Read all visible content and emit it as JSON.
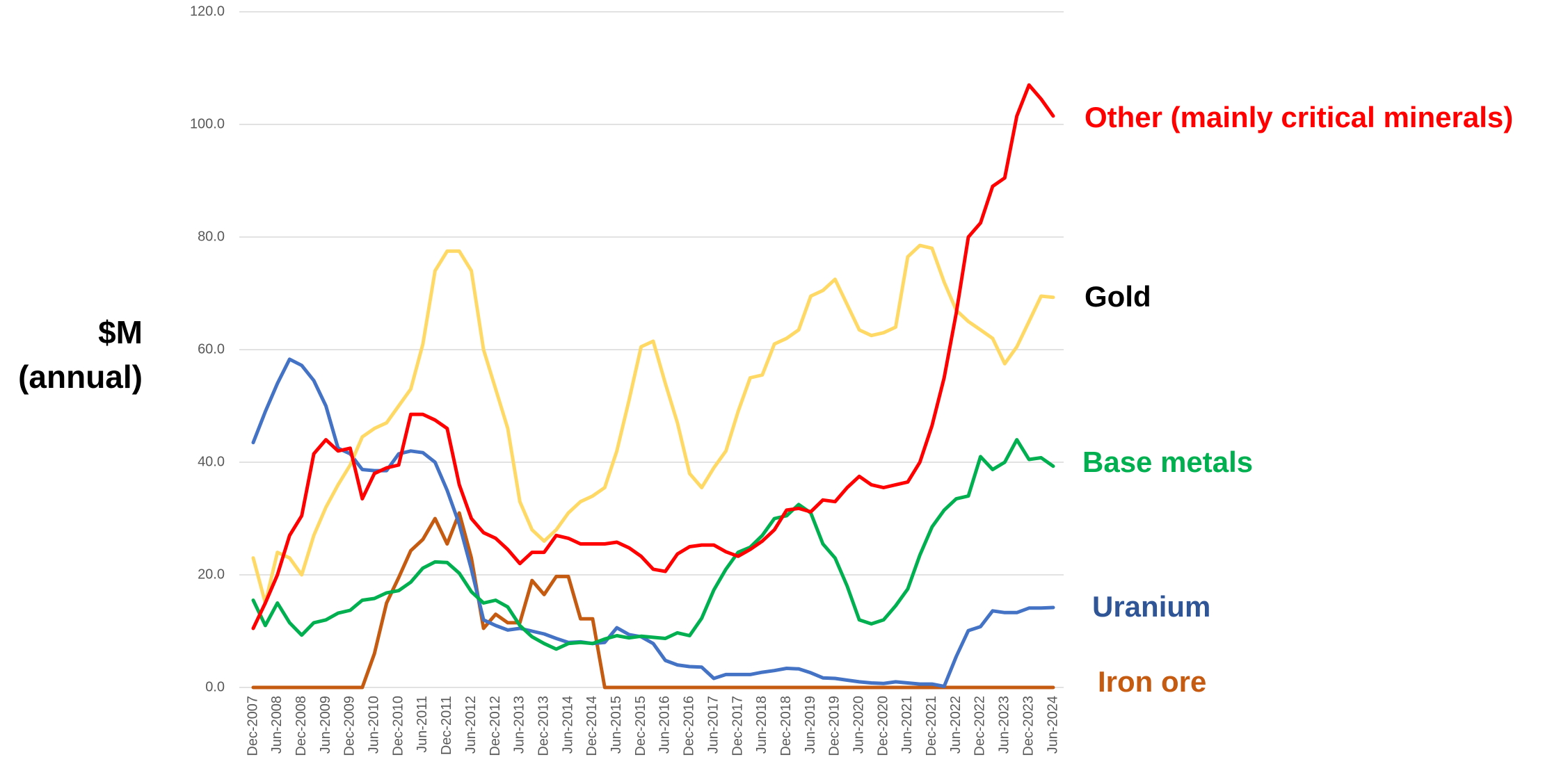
{
  "chart_data": {
    "type": "line",
    "y_label": [
      "$M",
      "(annual)"
    ],
    "categories": [
      "Dec-2007",
      null,
      "Jun-2008",
      null,
      "Dec-2008",
      null,
      "Jun-2009",
      null,
      "Dec-2009",
      null,
      "Jun-2010",
      null,
      "Dec-2010",
      null,
      "Jun-2011",
      null,
      "Dec-2011",
      null,
      "Jun-2012",
      null,
      "Dec-2012",
      null,
      "Jun-2013",
      null,
      "Dec-2013",
      null,
      "Jun-2014",
      null,
      "Dec-2014",
      null,
      "Jun-2015",
      null,
      "Dec-2015",
      null,
      "Jun-2016",
      null,
      "Dec-2016",
      null,
      "Jun-2017",
      null,
      "Dec-2017",
      null,
      "Jun-2018",
      null,
      "Dec-2018",
      null,
      "Jun-2019",
      null,
      "Dec-2019",
      null,
      "Jun-2020",
      null,
      "Dec-2020",
      null,
      "Jun-2021",
      null,
      "Dec-2021",
      null,
      "Jun-2022",
      null,
      "Dec-2022",
      null,
      "Jun-2023",
      null,
      "Dec-2023",
      null,
      "Jun-2024"
    ],
    "series": [
      {
        "name": "Other (mainly critical minerals)",
        "color": "#ff0000",
        "label_color": "#ff0000",
        "values": [
          10.5,
          15,
          20,
          27,
          30.5,
          41.5,
          44,
          42,
          42.5,
          33.5,
          38,
          39,
          39.5,
          48.5,
          48.5,
          47.5,
          46,
          36,
          30,
          27.5,
          26.5,
          24.5,
          22,
          24,
          24,
          27,
          26.5,
          25.5,
          25.5,
          25.5,
          25.8,
          24.8,
          23.3,
          21,
          20.6,
          23.7,
          25,
          25.3,
          25.3,
          24.1,
          23.3,
          24.5,
          26,
          28,
          31.5,
          31.8,
          31.2,
          33.3,
          33,
          35.5,
          37.5,
          36,
          35.5,
          36,
          36.5,
          40,
          46.5,
          55,
          66.5,
          80,
          82.5,
          89,
          90.5,
          101.5,
          107,
          104.5,
          101.5
        ]
      },
      {
        "name": "Gold",
        "color": "#ffd966",
        "label_color": "#000000",
        "values": [
          23,
          15,
          24,
          23,
          20,
          27,
          32,
          36,
          39.5,
          44.5,
          46,
          47,
          50,
          53,
          61,
          74,
          77.5,
          77.5,
          74,
          60,
          53,
          46,
          33,
          28,
          26,
          28,
          31,
          33,
          34,
          35.5,
          42,
          51,
          60.5,
          61.5,
          54,
          47,
          38,
          35.5,
          39,
          42,
          49,
          55,
          55.5,
          61,
          62,
          63.5,
          69.5,
          70.5,
          72.5,
          68,
          63.5,
          62.5,
          63,
          64,
          76.5,
          78.5,
          78,
          72,
          67,
          65,
          63.5,
          62,
          57.5,
          60.5,
          65,
          69.5,
          69.3
        ]
      },
      {
        "name": "Base metals",
        "color": "#00b050",
        "label_color": "#00b050",
        "values": [
          15.5,
          11,
          15,
          11.5,
          9.3,
          11.5,
          12,
          13.2,
          13.7,
          15.5,
          15.8,
          16.8,
          17.2,
          18.7,
          21.2,
          22.3,
          22.2,
          20.3,
          17,
          15,
          15.5,
          14.3,
          11,
          9,
          7.8,
          6.8,
          7.8,
          8,
          7.8,
          8.6,
          9.2,
          8.8,
          9.1,
          8.9,
          8.7,
          9.7,
          9.2,
          12.3,
          17.3,
          21,
          24,
          24.9,
          27,
          30,
          30.5,
          32.5,
          31,
          25.5,
          23,
          18,
          12,
          11.3,
          12,
          14.5,
          17.5,
          23.5,
          28.5,
          31.5,
          33.5,
          34,
          41,
          38.7,
          40,
          44,
          40.5,
          40.8,
          39.3
        ]
      },
      {
        "name": "Uranium",
        "color": "#4472c4",
        "label_color": "#2f5597",
        "values": [
          43.5,
          49,
          54,
          58.3,
          57.2,
          54.5,
          50,
          42.5,
          41.5,
          38.7,
          38.5,
          38.5,
          41.5,
          42,
          41.7,
          40,
          35,
          29,
          21,
          12,
          11,
          10.2,
          10.5,
          10,
          9.5,
          8.7,
          8,
          8.1,
          7.8,
          8,
          10.6,
          9.4,
          9,
          7.8,
          4.8,
          4,
          3.7,
          3.6,
          1.6,
          2.3,
          2.3,
          2.3,
          2.7,
          3,
          3.4,
          3.3,
          2.6,
          1.7,
          1.6,
          1.3,
          1,
          0.8,
          0.7,
          1,
          0.8,
          0.6,
          0.6,
          0.2,
          5.5,
          10.1,
          10.8,
          13.6,
          13.3,
          13.3,
          14.1,
          14.1,
          14.2
        ]
      },
      {
        "name": "Iron ore",
        "color": "#c55a11",
        "label_color": "#c55a11",
        "values": [
          0,
          0,
          0,
          0,
          0,
          0,
          0,
          0,
          0,
          0,
          6,
          15,
          19.5,
          24.3,
          26.3,
          30,
          25.5,
          31,
          23,
          10.5,
          13,
          11.5,
          11.5,
          19,
          16.5,
          19.7,
          19.7,
          12.2,
          12.2,
          0,
          0,
          0,
          0,
          0,
          0,
          0,
          0,
          0,
          0,
          0,
          0,
          0,
          0,
          0,
          0,
          0,
          0,
          0,
          0,
          0,
          0,
          0,
          0,
          0,
          0,
          0,
          0,
          0,
          0,
          0,
          0,
          0,
          0,
          0,
          0,
          0,
          0
        ]
      }
    ],
    "ylim": [
      0,
      120
    ],
    "yticks": [
      {
        "value": 0,
        "label": "0.0"
      },
      {
        "value": 20,
        "label": "20.0"
      },
      {
        "value": 40,
        "label": "40.0"
      },
      {
        "value": 60,
        "label": "60.0"
      },
      {
        "value": 80,
        "label": "80.0"
      },
      {
        "value": 100,
        "label": "100.0"
      },
      {
        "value": 120,
        "label": "120.0"
      }
    ],
    "grid": true
  }
}
